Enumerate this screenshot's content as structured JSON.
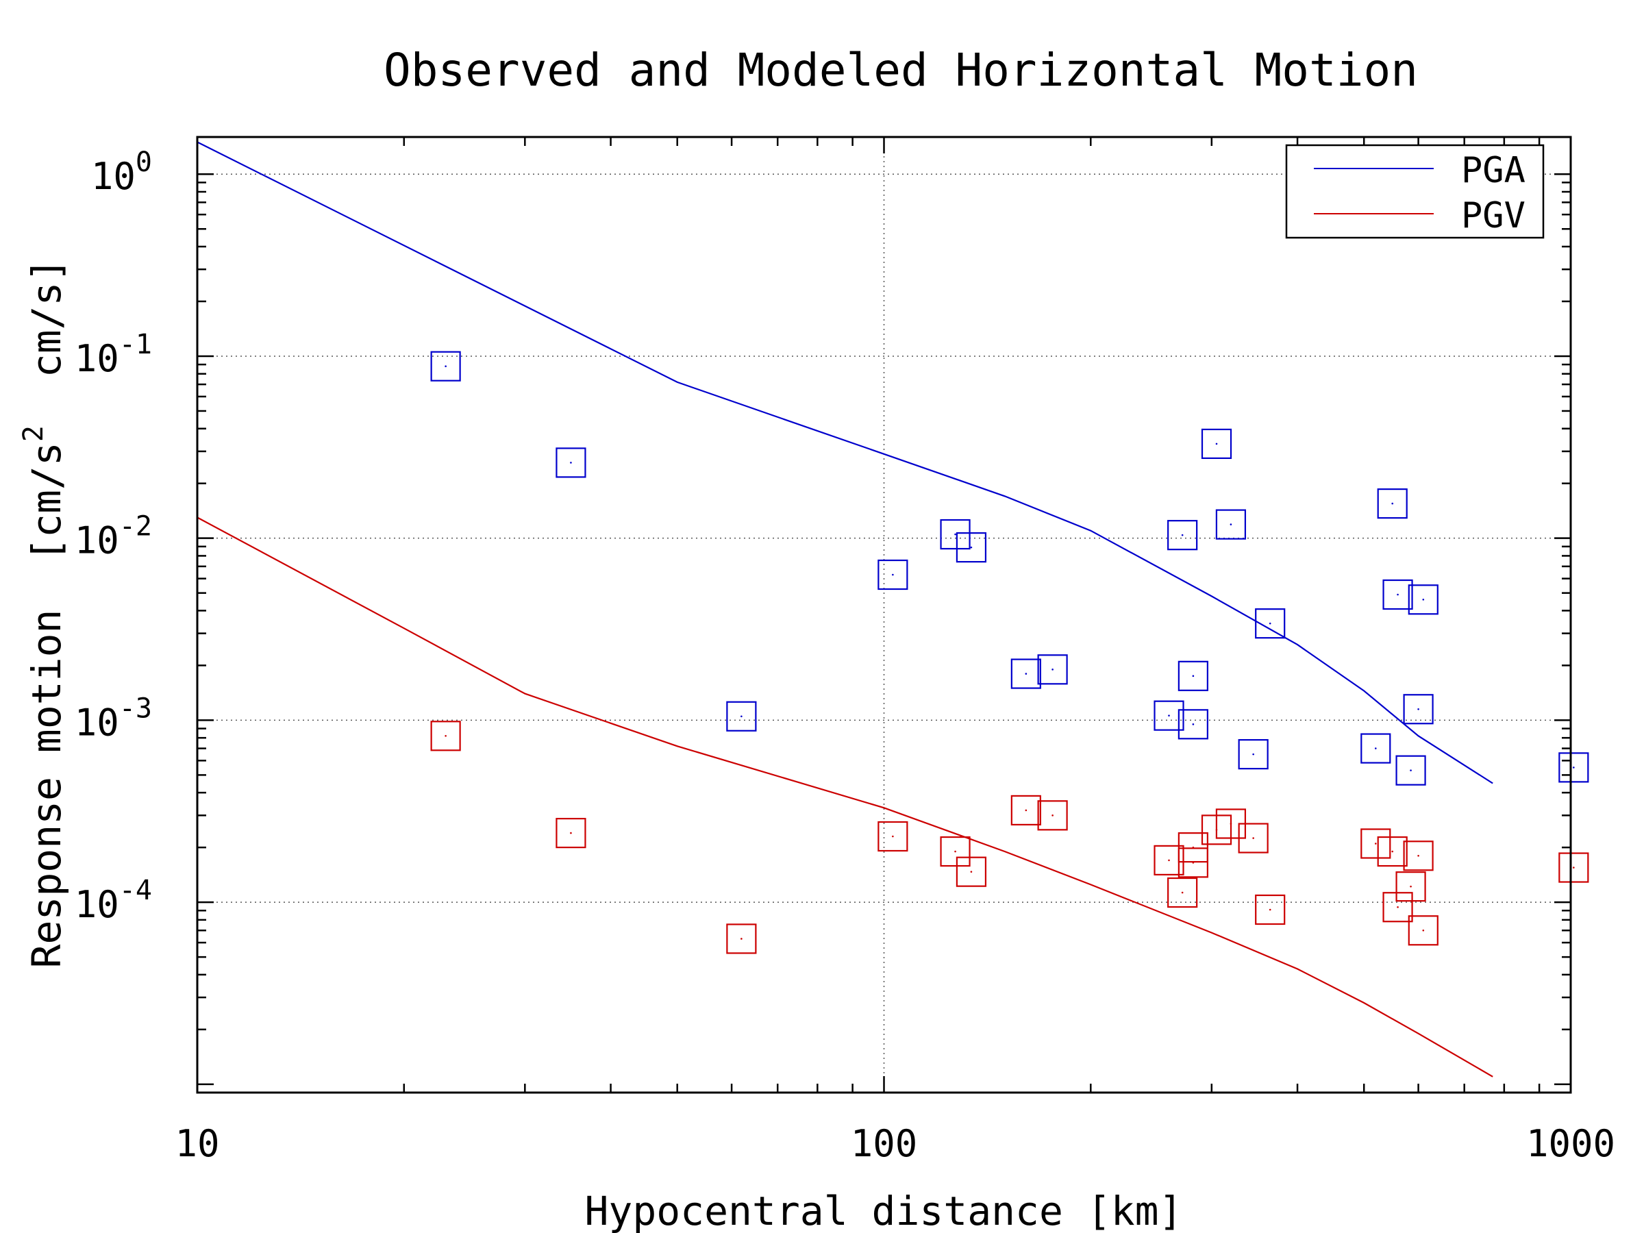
{
  "chart_data": {
    "type": "scatter",
    "title": "Observed and Modeled Horizontal Motion",
    "xlabel": "Hypocentral distance [km]",
    "ylabel_parts": {
      "main": "Response motion  [cm/s",
      "sup": "2",
      "tail": "  cm/s]"
    },
    "x_scale": "log",
    "y_scale": "log",
    "xlim": [
      10,
      1000
    ],
    "ylim": [
      9e-06,
      1.6
    ],
    "x_ticks": [
      {
        "value": 10,
        "label": "10"
      },
      {
        "value": 100,
        "label": "100"
      },
      {
        "value": 1000,
        "label": "1000"
      }
    ],
    "y_ticks": [
      {
        "value": 1,
        "base": "10",
        "exp": "0"
      },
      {
        "value": 0.1,
        "base": "10",
        "exp": "-1"
      },
      {
        "value": 0.01,
        "base": "10",
        "exp": "-2"
      },
      {
        "value": 0.001,
        "base": "10",
        "exp": "-3"
      },
      {
        "value": 0.0001,
        "base": "10",
        "exp": "-4"
      }
    ],
    "grid": true,
    "legend_position": "top-right",
    "series": [
      {
        "name": "PGA",
        "color": "#0000cc",
        "line": [
          [
            10,
            1.5
          ],
          [
            50,
            0.072
          ],
          [
            100,
            0.029
          ],
          [
            150,
            0.017
          ],
          [
            200,
            0.011
          ],
          [
            300,
            0.0048
          ],
          [
            400,
            0.0026
          ],
          [
            500,
            0.00145
          ],
          [
            600,
            0.00082
          ],
          [
            770,
            0.00045
          ]
        ],
        "points": [
          [
            23,
            0.088
          ],
          [
            35,
            0.026
          ],
          [
            62,
            0.00105
          ],
          [
            103,
            0.0063
          ],
          [
            127,
            0.0105
          ],
          [
            134,
            0.0089
          ],
          [
            161,
            0.0018
          ],
          [
            176,
            0.0019
          ],
          [
            260,
            0.00106
          ],
          [
            272,
            0.0104
          ],
          [
            282,
            0.00095
          ],
          [
            282,
            0.00175
          ],
          [
            305,
            0.033
          ],
          [
            320,
            0.0119
          ],
          [
            345,
            0.00065
          ],
          [
            365,
            0.0034
          ],
          [
            520,
            0.0007
          ],
          [
            550,
            0.0155
          ],
          [
            560,
            0.0049
          ],
          [
            585,
            0.00053
          ],
          [
            600,
            0.00115
          ],
          [
            610,
            0.0046
          ],
          [
            1010,
            0.00055
          ]
        ]
      },
      {
        "name": "PGV",
        "color": "#cc0000",
        "line": [
          [
            10,
            0.013
          ],
          [
            20,
            0.0032
          ],
          [
            30,
            0.0014
          ],
          [
            50,
            0.00072
          ],
          [
            100,
            0.00033
          ],
          [
            150,
            0.00019
          ],
          [
            200,
            0.000125
          ],
          [
            300,
            6.8e-05
          ],
          [
            400,
            4.3e-05
          ],
          [
            500,
            2.8e-05
          ],
          [
            600,
            1.9e-05
          ],
          [
            770,
            1.1e-05
          ]
        ],
        "points": [
          [
            23,
            0.00082
          ],
          [
            35,
            0.00024
          ],
          [
            62,
            6.3e-05
          ],
          [
            103,
            0.00023
          ],
          [
            127,
            0.00019
          ],
          [
            134,
            0.000147
          ],
          [
            161,
            0.00032
          ],
          [
            176,
            0.0003
          ],
          [
            260,
            0.00017
          ],
          [
            272,
            0.000113
          ],
          [
            282,
            0.000165
          ],
          [
            282,
            0.0002
          ],
          [
            305,
            0.00025
          ],
          [
            320,
            0.00027
          ],
          [
            345,
            0.000225
          ],
          [
            365,
            9.1e-05
          ],
          [
            520,
            0.00021
          ],
          [
            550,
            0.00019
          ],
          [
            560,
            9.4e-05
          ],
          [
            585,
            0.000122
          ],
          [
            600,
            0.00018
          ],
          [
            610,
            7e-05
          ],
          [
            1010,
            0.000155
          ]
        ]
      }
    ]
  }
}
